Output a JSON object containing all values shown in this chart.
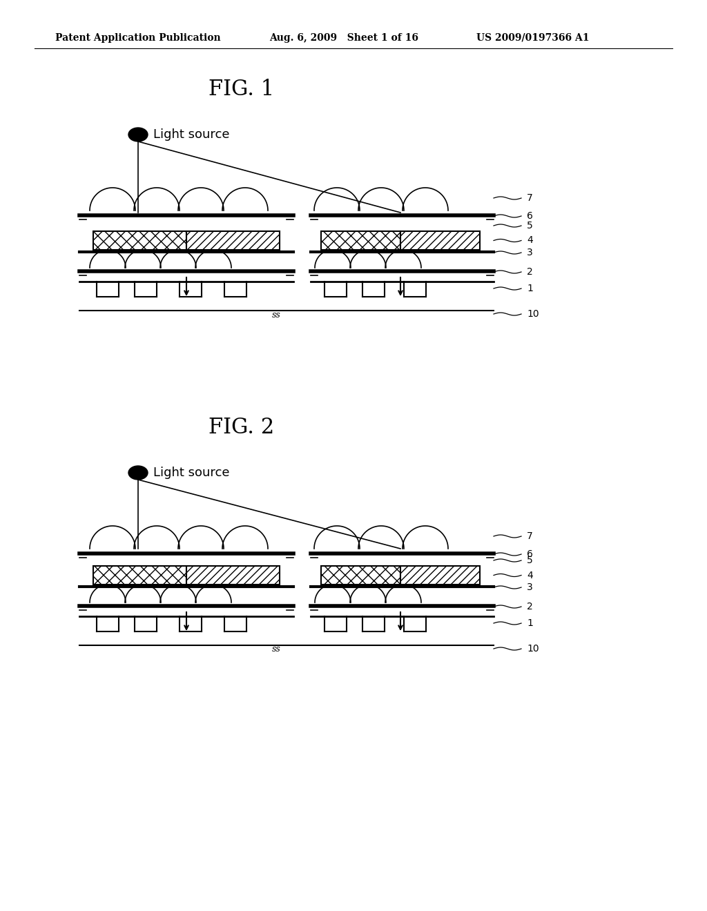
{
  "bg_color": "#ffffff",
  "fig1_title": "FIG. 1",
  "fig2_title": "FIG. 2",
  "header_left": "Patent Application Publication",
  "header_mid": "Aug. 6, 2009   Sheet 1 of 16",
  "header_right": "US 2009/0197366 A1",
  "label_light_source": "Light source",
  "labels_right": [
    "7",
    "6",
    "5",
    "4",
    "3",
    "2",
    "1",
    "10"
  ]
}
